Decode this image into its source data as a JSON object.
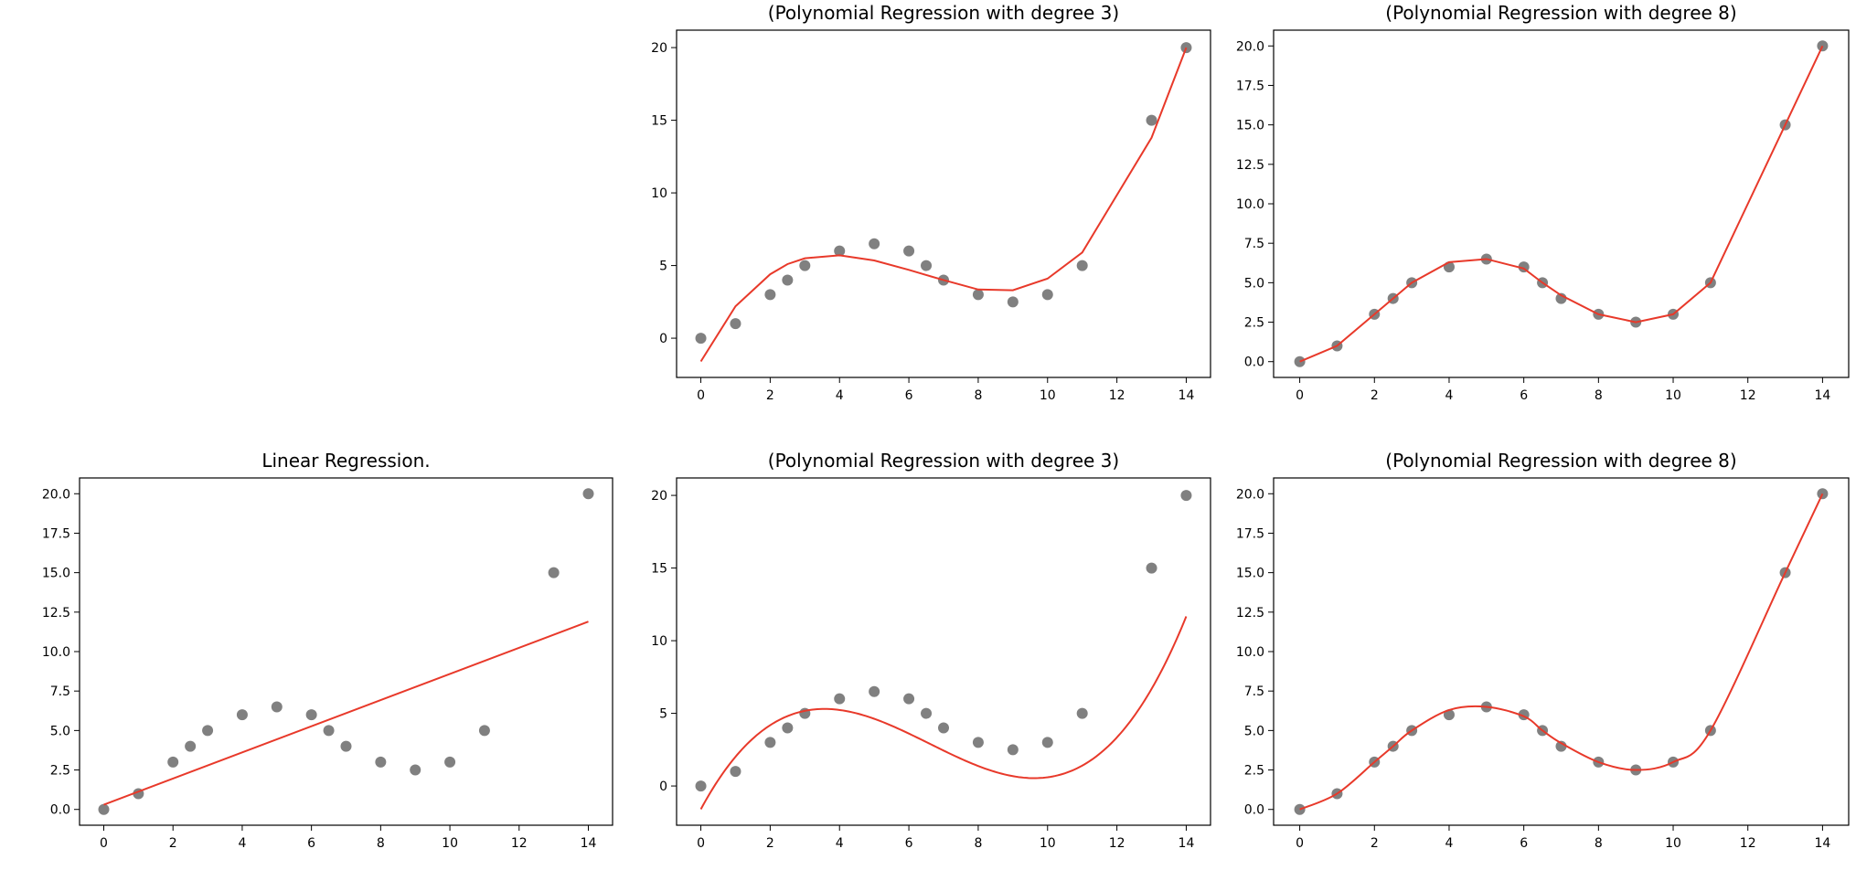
{
  "colors": {
    "points": "#808080",
    "fit": "#e8392a",
    "axes": "#000000"
  },
  "chart_data": [
    {
      "type": "scatter",
      "title": "(Polynomial Regression with degree 3)",
      "xlim": [
        -0.7,
        14.7
      ],
      "ylim": [
        -2.7,
        21.2
      ],
      "xticks": [
        0,
        2,
        4,
        6,
        8,
        10,
        12,
        14
      ],
      "yticks": [
        0,
        5,
        10,
        15,
        20
      ],
      "yticklabels": [
        "0",
        "5",
        "10",
        "15",
        "20"
      ],
      "series": [
        {
          "kind": "points",
          "x": [
            0,
            1,
            2,
            2.5,
            3,
            4,
            5,
            6,
            6.5,
            7,
            8,
            9,
            10,
            11,
            13,
            14
          ],
          "y": [
            0,
            1,
            3,
            4,
            5,
            6,
            6.5,
            6,
            5,
            4,
            3,
            2.5,
            3,
            5,
            15,
            20
          ]
        },
        {
          "kind": "line",
          "x": [
            0,
            1,
            2,
            2.5,
            3,
            4,
            5,
            6,
            6.5,
            7,
            8,
            9,
            10,
            11,
            13,
            14
          ],
          "y": [
            -1.6,
            2.2,
            4.4,
            5.1,
            5.5,
            5.7,
            5.35,
            4.7,
            4.35,
            4.0,
            3.35,
            3.3,
            4.1,
            5.9,
            13.8,
            20.0
          ]
        }
      ]
    },
    {
      "type": "scatter",
      "title": "(Polynomial Regression with degree 8)",
      "xlim": [
        -0.7,
        14.7
      ],
      "ylim": [
        -1.0,
        21.0
      ],
      "xticks": [
        0,
        2,
        4,
        6,
        8,
        10,
        12,
        14
      ],
      "yticks": [
        0,
        2.5,
        5,
        7.5,
        10,
        12.5,
        15,
        17.5,
        20
      ],
      "yticklabels": [
        "0.0",
        "2.5",
        "5.0",
        "7.5",
        "10.0",
        "12.5",
        "15.0",
        "17.5",
        "20.0"
      ],
      "series": [
        {
          "kind": "points",
          "x": [
            0,
            1,
            2,
            2.5,
            3,
            4,
            5,
            6,
            6.5,
            7,
            8,
            9,
            10,
            11,
            13,
            14
          ],
          "y": [
            0,
            1,
            3,
            4,
            5,
            6,
            6.5,
            6,
            5,
            4,
            3,
            2.5,
            3,
            5,
            15,
            20
          ]
        },
        {
          "kind": "line",
          "x": [
            0,
            1,
            2,
            2.5,
            3,
            4,
            5,
            6,
            6.5,
            7,
            8,
            9,
            10,
            11,
            13,
            14
          ],
          "y": [
            0,
            1,
            3,
            4,
            5,
            6.3,
            6.5,
            5.9,
            5.0,
            4.2,
            3.0,
            2.5,
            3.0,
            5.0,
            15.0,
            20.0
          ]
        }
      ]
    },
    {
      "type": "scatter",
      "title": "Linear Regression.",
      "xlim": [
        -0.7,
        14.7
      ],
      "ylim": [
        -1.0,
        21.0
      ],
      "xticks": [
        0,
        2,
        4,
        6,
        8,
        10,
        12,
        14
      ],
      "yticks": [
        0,
        2.5,
        5,
        7.5,
        10,
        12.5,
        15,
        17.5,
        20
      ],
      "yticklabels": [
        "0.0",
        "2.5",
        "5.0",
        "7.5",
        "10.0",
        "12.5",
        "15.0",
        "17.5",
        "20.0"
      ],
      "series": [
        {
          "kind": "points",
          "x": [
            0,
            1,
            2,
            2.5,
            3,
            4,
            5,
            6,
            6.5,
            7,
            8,
            9,
            10,
            11,
            13,
            14
          ],
          "y": [
            0,
            1,
            3,
            4,
            5,
            6,
            6.5,
            6,
            5,
            4,
            3,
            2.5,
            3,
            5,
            15,
            20
          ]
        },
        {
          "kind": "line",
          "x": [
            0,
            14
          ],
          "y": [
            0.3,
            11.9
          ]
        }
      ]
    },
    {
      "type": "scatter",
      "title": "(Polynomial Regression with degree 3)",
      "xlim": [
        -0.7,
        14.7
      ],
      "ylim": [
        -2.7,
        21.2
      ],
      "xticks": [
        0,
        2,
        4,
        6,
        8,
        10,
        12,
        14
      ],
      "yticks": [
        0,
        5,
        10,
        15,
        20
      ],
      "yticklabels": [
        "0",
        "5",
        "10",
        "15",
        "20"
      ],
      "series": [
        {
          "kind": "points",
          "x": [
            0,
            1,
            2,
            2.5,
            3,
            4,
            5,
            6,
            6.5,
            7,
            8,
            9,
            10,
            11,
            13,
            14
          ],
          "y": [
            0,
            1,
            3,
            4,
            5,
            6,
            6.5,
            6,
            5,
            4,
            3,
            2.5,
            3,
            5,
            15,
            20
          ]
        },
        {
          "kind": "curve",
          "coef": [
            -1.6,
            4.42,
            -0.85,
            0.043
          ]
        }
      ]
    },
    {
      "type": "scatter",
      "title": "(Polynomial Regression with degree 8)",
      "xlim": [
        -0.7,
        14.7
      ],
      "ylim": [
        -1.0,
        21.0
      ],
      "xticks": [
        0,
        2,
        4,
        6,
        8,
        10,
        12,
        14
      ],
      "yticks": [
        0,
        2.5,
        5,
        7.5,
        10,
        12.5,
        15,
        17.5,
        20
      ],
      "yticklabels": [
        "0.0",
        "2.5",
        "5.0",
        "7.5",
        "10.0",
        "12.5",
        "15.0",
        "17.5",
        "20.0"
      ],
      "series": [
        {
          "kind": "points",
          "x": [
            0,
            1,
            2,
            2.5,
            3,
            4,
            5,
            6,
            6.5,
            7,
            8,
            9,
            10,
            11,
            13,
            14
          ],
          "y": [
            0,
            1,
            3,
            4,
            5,
            6,
            6.5,
            6,
            5,
            4,
            3,
            2.5,
            3,
            5,
            15,
            20
          ]
        },
        {
          "kind": "spline",
          "x": [
            0,
            1,
            2,
            2.5,
            3,
            4,
            5,
            6,
            6.5,
            7,
            8,
            9,
            10,
            11,
            13,
            14
          ],
          "y": [
            0,
            1,
            3,
            4,
            5,
            6.3,
            6.5,
            5.9,
            5.0,
            4.2,
            3.0,
            2.5,
            3.0,
            5.0,
            15.0,
            20.0
          ]
        }
      ]
    }
  ]
}
